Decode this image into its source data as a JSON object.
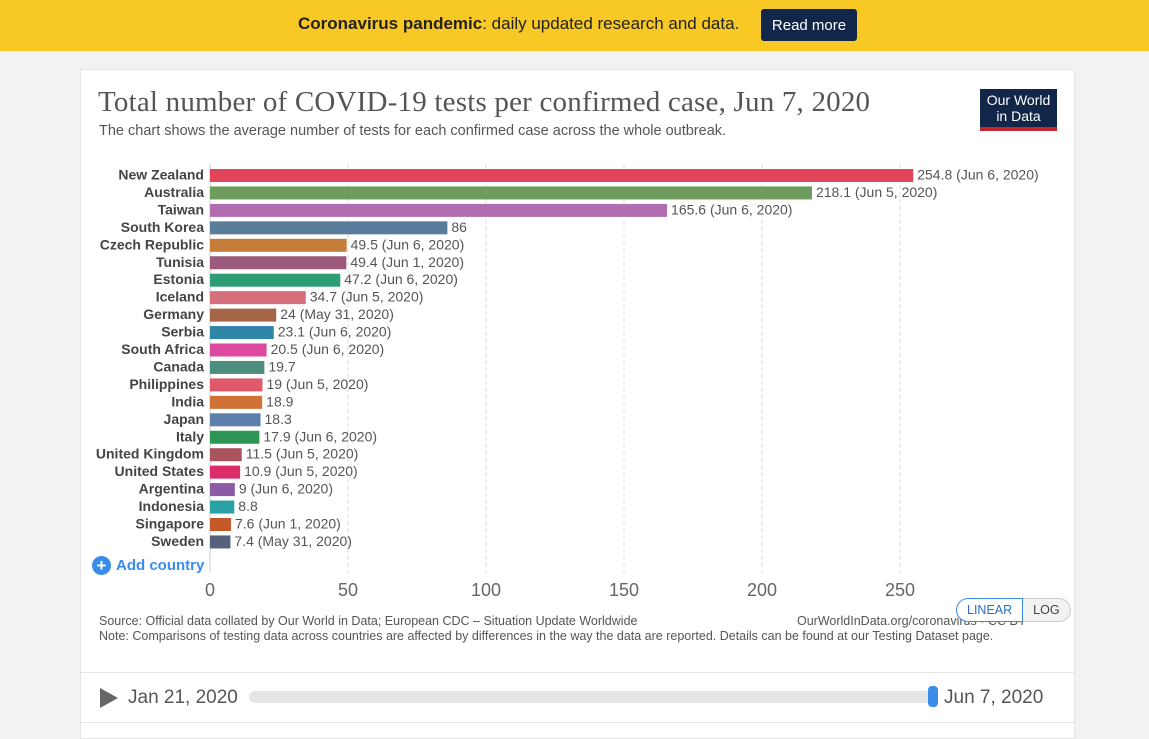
{
  "banner": {
    "title": "Coronavirus pandemic",
    "text": ": daily updated research and data.",
    "button_label": "Read more"
  },
  "header": {
    "title": "Total number of COVID-19 tests per confirmed case, Jun 7, 2020",
    "subtitle": "The chart shows the average number of tests for each confirmed case across the whole outbreak.",
    "logo_line1": "Our World",
    "logo_line2": "in Data"
  },
  "chart_data": {
    "type": "bar",
    "orientation": "horizontal",
    "title": "Total number of COVID-19 tests per confirmed case, Jun 7, 2020",
    "xlabel": "",
    "ylabel": "",
    "xlim": [
      0,
      260
    ],
    "xticks": [
      0,
      50,
      100,
      150,
      200,
      250
    ],
    "grid": true,
    "categories": [
      "New Zealand",
      "Australia",
      "Taiwan",
      "South Korea",
      "Czech Republic",
      "Tunisia",
      "Estonia",
      "Iceland",
      "Germany",
      "Serbia",
      "South Africa",
      "Canada",
      "Philippines",
      "India",
      "Japan",
      "Italy",
      "United Kingdom",
      "United States",
      "Argentina",
      "Indonesia",
      "Singapore",
      "Sweden"
    ],
    "values": [
      254.8,
      218.1,
      165.6,
      86,
      49.5,
      49.4,
      47.2,
      34.7,
      24,
      23.1,
      20.5,
      19.7,
      19,
      18.9,
      18.3,
      17.9,
      11.5,
      10.9,
      9,
      8.8,
      7.6,
      7.4
    ],
    "data_labels": [
      "254.8 (Jun 6, 2020)",
      "218.1 (Jun 5, 2020)",
      "165.6 (Jun 6, 2020)",
      "86",
      "49.5 (Jun 6, 2020)",
      "49.4 (Jun 1, 2020)",
      "47.2 (Jun 6, 2020)",
      "34.7 (Jun 5, 2020)",
      "24 (May 31, 2020)",
      "23.1 (Jun 6, 2020)",
      "20.5 (Jun 6, 2020)",
      "19.7",
      "19 (Jun 5, 2020)",
      "18.9",
      "18.3",
      "17.9 (Jun 6, 2020)",
      "11.5 (Jun 5, 2020)",
      "10.9 (Jun 5, 2020)",
      "9 (Jun 6, 2020)",
      "8.8",
      "7.6 (Jun 1, 2020)",
      "7.4 (May 31, 2020)"
    ],
    "colors": [
      "#e0455c",
      "#6d9c5d",
      "#b26cb0",
      "#597d9a",
      "#c77d3a",
      "#9c5a7a",
      "#2e9d74",
      "#d56f7c",
      "#a56648",
      "#2f86a6",
      "#dc4a9f",
      "#4d8f7f",
      "#e0596a",
      "#d07236",
      "#5d7fae",
      "#2e9654",
      "#a9545d",
      "#dc2c6a",
      "#8b5ca5",
      "#2aa1a5",
      "#c45a2a",
      "#56617b"
    ]
  },
  "controls": {
    "add_country": "Add country",
    "add_icon": "plus-circle-icon",
    "scale_linear": "LINEAR",
    "scale_log": "LOG"
  },
  "footer": {
    "source": "Source: Official data collated by Our World in Data; European CDC – Situation Update Worldwide",
    "credit": "OurWorldInData.org/coronavirus • CC BY",
    "note": "Note: Comparisons of testing data across countries are affected by differences in the way the data are reported. Details can be found at our Testing Dataset page."
  },
  "timeline": {
    "start": "Jan 21, 2020",
    "end": "Jun 7, 2020",
    "play_icon": "play-icon",
    "position": 1.0
  }
}
